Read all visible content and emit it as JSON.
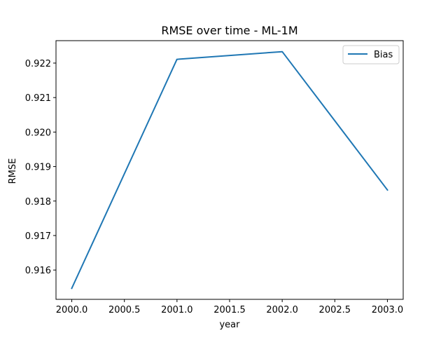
{
  "chart_data": {
    "type": "line",
    "title": "RMSE over time - ML-1M",
    "xlabel": "year",
    "ylabel": "RMSE",
    "x": [
      2000,
      2001,
      2002,
      2003
    ],
    "series": [
      {
        "name": "Bias",
        "values": [
          0.91547,
          0.92211,
          0.92233,
          0.91832
        ],
        "color": "#1f77b4"
      }
    ],
    "xlim": [
      1999.85,
      2003.15
    ],
    "ylim": [
      0.91515,
      0.92265
    ],
    "xticks": [
      2000.0,
      2000.5,
      2001.0,
      2001.5,
      2002.0,
      2002.5,
      2003.0
    ],
    "xtick_labels": [
      "2000.0",
      "2000.5",
      "2001.0",
      "2001.5",
      "2002.0",
      "2002.5",
      "2003.0"
    ],
    "yticks": [
      0.916,
      0.917,
      0.918,
      0.919,
      0.92,
      0.921,
      0.922
    ],
    "ytick_labels": [
      "0.916",
      "0.917",
      "0.918",
      "0.919",
      "0.920",
      "0.921",
      "0.922"
    ],
    "grid": false,
    "legend_position": "top-right"
  }
}
